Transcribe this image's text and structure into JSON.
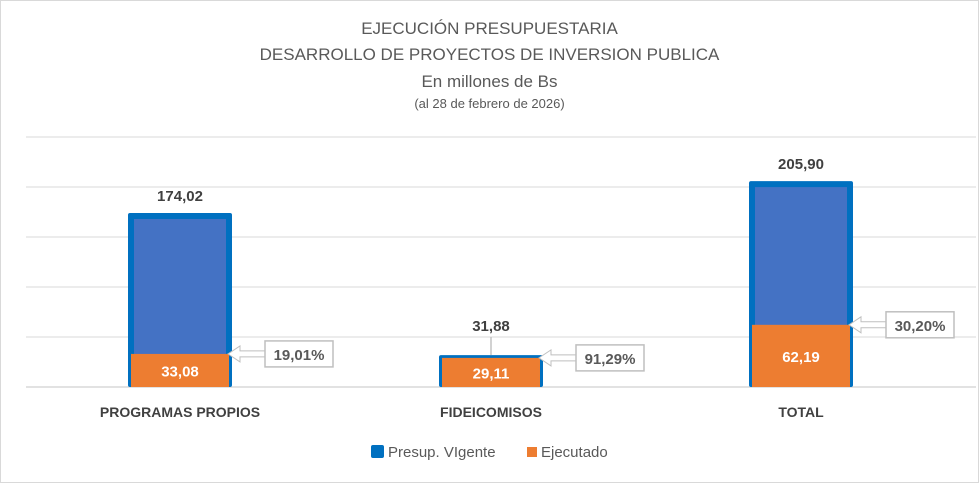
{
  "chart_data": {
    "type": "bar",
    "title": "EJECUCIÓN PRESUPUESTARIA",
    "subtitle": "DESARROLLO DE PROYECTOS DE INVERSION PUBLICA",
    "units": "En millones de Bs",
    "date_note": "(al 28 de febrero de 2026)",
    "categories": [
      "PROGRAMAS PROPIOS",
      "FIDEICOMISOS",
      "TOTAL"
    ],
    "series": [
      {
        "name": "Presup. VIgente",
        "color": "#4472C4",
        "border": "#0070C0",
        "values": [
          174.02,
          31.88,
          205.9
        ],
        "labels": [
          "174,02",
          "31,88",
          "205,90"
        ]
      },
      {
        "name": "Ejecutado",
        "color": "#ED7D31",
        "values": [
          33.08,
          29.11,
          62.19
        ],
        "labels": [
          "33,08",
          "29,11",
          "62,19"
        ]
      }
    ],
    "percent_labels": [
      "19,01%",
      "91,29%",
      "30,20%"
    ],
    "ylim": [
      0,
      250
    ],
    "grid_step": 50,
    "grid": true,
    "legend": "bottom"
  }
}
